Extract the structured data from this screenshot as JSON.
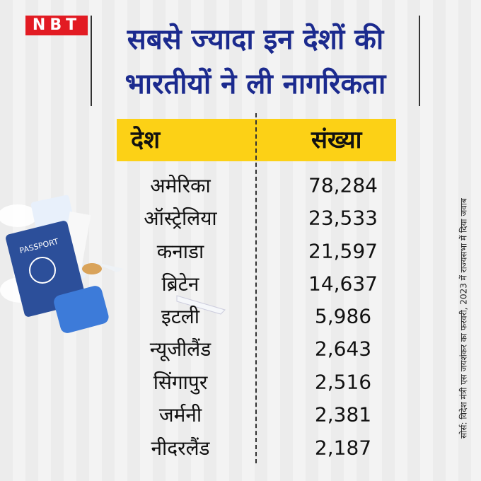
{
  "logo": "NBT",
  "title": {
    "line1": "सबसे ज्यादा इन देशों की",
    "line2": "भारतीयों ने ली नागरिकता"
  },
  "table": {
    "header": [
      "देश",
      "संख्या"
    ],
    "rows": [
      [
        "अमेरिका",
        "78,284"
      ],
      [
        "ऑस्ट्रेलिया",
        "23,533"
      ],
      [
        "कनाडा",
        "21,597"
      ],
      [
        "ब्रिटेन",
        "14,637"
      ],
      [
        "इटली",
        "5,986"
      ],
      [
        "न्यूजीलैंड",
        "2,643"
      ],
      [
        "सिंगापुर",
        "2,516"
      ],
      [
        "जर्मनी",
        "2,381"
      ],
      [
        "नीदरलैंड",
        "2,187"
      ]
    ]
  },
  "source": "सोर्स: विदेश मंत्री एस जयशंकर का फरवरी, 2023 में राज्यसभा में दिया जवाब",
  "illustration": {
    "passport_label": "PASSPORT"
  }
}
